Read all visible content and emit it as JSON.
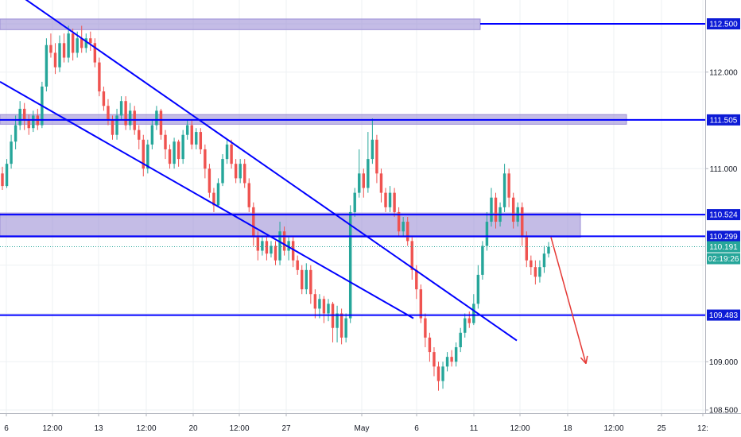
{
  "chart_data": {
    "type": "candlestick",
    "title": "",
    "xlabel": "",
    "ylabel": "",
    "ylim": [
      108.42,
      112.92
    ],
    "grid": true,
    "y_ticks": [
      "112.500",
      "112.000",
      "111.505",
      "111.000",
      "110.524",
      "110.299",
      "110.191",
      "109.483",
      "109.000",
      "108.500"
    ],
    "x_ticks": [
      "6",
      "12:00",
      "13",
      "12:00",
      "20",
      "12:00",
      "27",
      "May",
      "6",
      "11",
      "12:00",
      "18",
      "12:00",
      "25",
      "12:"
    ],
    "colors": {
      "up": "#26a69a",
      "down": "#ef5350",
      "level_line": "#0000ff",
      "zone_fill": "#9c8fd6",
      "arrow": "#e53935",
      "price_badge": "#26a69a",
      "axis_badge": "#0d1bd6"
    },
    "last_price": "110.191",
    "countdown": "02:19:26",
    "levels": [
      {
        "label": "112.500",
        "value": 112.5
      },
      {
        "label": "111.505",
        "value": 111.505
      },
      {
        "label": "110.524",
        "value": 110.524
      },
      {
        "label": "110.299",
        "value": 110.299
      },
      {
        "label": "109.483",
        "value": 109.483
      }
    ],
    "zones": [
      {
        "from": 112.44,
        "to": 112.55
      },
      {
        "from": 111.46,
        "to": 111.56
      },
      {
        "from": 110.29,
        "to": 110.54
      }
    ],
    "candles": [
      [
        110.95,
        110.82,
        111.02,
        110.78
      ],
      [
        110.82,
        111.05,
        111.1,
        110.8
      ],
      [
        111.05,
        111.28,
        111.35,
        111.0
      ],
      [
        111.28,
        111.45,
        111.55,
        111.2
      ],
      [
        111.45,
        111.62,
        111.7,
        111.4
      ],
      [
        111.62,
        111.5,
        111.68,
        111.4
      ],
      [
        111.5,
        111.42,
        111.56,
        111.35
      ],
      [
        111.42,
        111.55,
        111.6,
        111.38
      ],
      [
        111.55,
        111.45,
        111.62,
        111.4
      ],
      [
        111.45,
        111.85,
        111.9,
        111.42
      ],
      [
        111.85,
        112.28,
        112.35,
        111.8
      ],
      [
        112.28,
        112.2,
        112.4,
        112.15
      ],
      [
        112.2,
        112.05,
        112.3,
        111.98
      ],
      [
        112.05,
        112.3,
        112.38,
        112.0
      ],
      [
        112.3,
        112.15,
        112.4,
        112.1
      ],
      [
        112.15,
        112.4,
        112.48,
        112.1
      ],
      [
        112.4,
        112.2,
        112.45,
        112.12
      ],
      [
        112.2,
        112.35,
        112.42,
        112.15
      ],
      [
        112.35,
        112.25,
        112.48,
        112.2
      ],
      [
        112.25,
        112.35,
        112.4,
        112.2
      ],
      [
        112.35,
        112.3,
        112.42,
        112.22
      ],
      [
        112.3,
        112.1,
        112.35,
        112.05
      ],
      [
        112.1,
        111.8,
        112.15,
        111.75
      ],
      [
        111.8,
        111.65,
        111.85,
        111.6
      ],
      [
        111.65,
        111.5,
        111.72,
        111.45
      ],
      [
        111.5,
        111.35,
        111.55,
        111.3
      ],
      [
        111.35,
        111.55,
        111.62,
        111.3
      ],
      [
        111.55,
        111.7,
        111.75,
        111.5
      ],
      [
        111.7,
        111.45,
        111.75,
        111.4
      ],
      [
        111.45,
        111.6,
        111.68,
        111.4
      ],
      [
        111.6,
        111.4,
        111.65,
        111.35
      ],
      [
        111.4,
        111.3,
        111.45,
        111.2
      ],
      [
        111.3,
        111.0,
        111.35,
        110.92
      ],
      [
        111.0,
        111.25,
        111.3,
        110.95
      ],
      [
        111.25,
        111.45,
        111.5,
        111.2
      ],
      [
        111.45,
        111.6,
        111.65,
        111.4
      ],
      [
        111.6,
        111.35,
        111.62,
        111.3
      ],
      [
        111.35,
        111.2,
        111.4,
        111.1
      ],
      [
        111.2,
        111.05,
        111.25,
        111.0
      ],
      [
        111.05,
        111.28,
        111.32,
        111.0
      ],
      [
        111.28,
        111.1,
        111.3,
        111.02
      ],
      [
        111.1,
        111.35,
        111.4,
        111.05
      ],
      [
        111.35,
        111.45,
        111.5,
        111.3
      ],
      [
        111.45,
        111.25,
        111.5,
        111.2
      ],
      [
        111.25,
        111.38,
        111.42,
        111.2
      ],
      [
        111.38,
        111.2,
        111.42,
        111.15
      ],
      [
        111.2,
        111.0,
        111.25,
        110.9
      ],
      [
        111.0,
        110.75,
        111.05,
        110.7
      ],
      [
        110.75,
        110.62,
        110.8,
        110.55
      ],
      [
        110.62,
        110.85,
        110.9,
        110.6
      ],
      [
        110.85,
        111.1,
        111.15,
        110.82
      ],
      [
        111.1,
        111.25,
        111.3,
        111.05
      ],
      [
        111.25,
        111.05,
        111.3,
        111.0
      ],
      [
        111.05,
        110.9,
        111.1,
        110.85
      ],
      [
        110.9,
        111.05,
        111.1,
        110.85
      ],
      [
        111.05,
        110.85,
        111.1,
        110.8
      ],
      [
        110.85,
        110.6,
        110.9,
        110.55
      ],
      [
        110.6,
        110.3,
        110.65,
        110.2
      ],
      [
        110.3,
        110.15,
        110.35,
        110.05
      ],
      [
        110.15,
        110.25,
        110.3,
        110.1
      ],
      [
        110.25,
        110.12,
        110.3,
        110.05
      ],
      [
        110.12,
        110.2,
        110.25,
        110.08
      ],
      [
        110.2,
        110.05,
        110.25,
        110.0
      ],
      [
        110.05,
        110.35,
        110.45,
        110.0
      ],
      [
        110.35,
        110.15,
        110.4,
        110.1
      ],
      [
        110.15,
        110.25,
        110.3,
        110.05
      ],
      [
        110.25,
        110.05,
        110.3,
        109.98
      ],
      [
        110.05,
        109.95,
        110.1,
        109.9
      ],
      [
        109.95,
        109.75,
        110.0,
        109.7
      ],
      [
        109.75,
        109.95,
        110.02,
        109.7
      ],
      [
        109.95,
        109.7,
        110.0,
        109.6
      ],
      [
        109.7,
        109.55,
        109.75,
        109.45
      ],
      [
        109.55,
        109.65,
        109.7,
        109.45
      ],
      [
        109.65,
        109.5,
        109.68,
        109.4
      ],
      [
        109.5,
        109.6,
        109.65,
        109.42
      ],
      [
        109.6,
        109.35,
        109.62,
        109.2
      ],
      [
        109.35,
        109.5,
        109.58,
        109.2
      ],
      [
        109.5,
        109.25,
        109.55,
        109.18
      ],
      [
        109.25,
        109.45,
        109.5,
        109.2
      ],
      [
        109.45,
        110.55,
        110.62,
        109.4
      ],
      [
        110.55,
        110.75,
        110.8,
        110.5
      ],
      [
        110.75,
        110.95,
        111.2,
        110.7
      ],
      [
        110.95,
        110.8,
        111.0,
        110.7
      ],
      [
        110.8,
        111.1,
        111.38,
        110.75
      ],
      [
        111.1,
        111.3,
        111.52,
        111.05
      ],
      [
        111.3,
        110.95,
        111.35,
        110.85
      ],
      [
        110.95,
        110.75,
        111.0,
        110.65
      ],
      [
        110.75,
        110.6,
        110.8,
        110.55
      ],
      [
        110.6,
        110.75,
        110.82,
        110.55
      ],
      [
        110.75,
        110.55,
        110.8,
        110.5
      ],
      [
        110.55,
        110.35,
        110.6,
        110.3
      ],
      [
        110.35,
        110.45,
        110.5,
        110.3
      ],
      [
        110.45,
        110.25,
        110.5,
        110.2
      ],
      [
        110.25,
        109.95,
        110.3,
        109.85
      ],
      [
        109.95,
        109.75,
        110.0,
        109.65
      ],
      [
        109.75,
        109.45,
        109.8,
        109.4
      ],
      [
        109.45,
        109.25,
        109.5,
        109.15
      ],
      [
        109.25,
        109.1,
        109.3,
        109.0
      ],
      [
        109.1,
        108.95,
        109.15,
        108.85
      ],
      [
        108.95,
        108.8,
        109.0,
        108.7
      ],
      [
        108.8,
        108.95,
        109.0,
        108.72
      ],
      [
        108.95,
        109.05,
        109.1,
        108.9
      ],
      [
        109.05,
        109.0,
        109.12,
        108.95
      ],
      [
        109.0,
        109.15,
        109.2,
        108.95
      ],
      [
        109.15,
        109.3,
        109.35,
        109.1
      ],
      [
        109.3,
        109.45,
        109.5,
        109.25
      ],
      [
        109.45,
        109.4,
        109.52,
        109.35
      ],
      [
        109.4,
        109.6,
        109.7,
        109.38
      ],
      [
        109.6,
        109.9,
        110.0,
        109.55
      ],
      [
        109.9,
        110.2,
        110.25,
        109.85
      ],
      [
        110.2,
        110.45,
        110.55,
        110.15
      ],
      [
        110.45,
        110.7,
        110.8,
        110.4
      ],
      [
        110.7,
        110.45,
        110.75,
        110.38
      ],
      [
        110.45,
        110.6,
        110.65,
        110.4
      ],
      [
        110.6,
        110.95,
        111.05,
        110.55
      ],
      [
        110.95,
        110.7,
        111.0,
        110.6
      ],
      [
        110.7,
        110.45,
        110.75,
        110.38
      ],
      [
        110.45,
        110.6,
        110.65,
        110.4
      ],
      [
        110.6,
        110.3,
        110.65,
        110.2
      ],
      [
        110.3,
        110.05,
        110.35,
        109.98
      ],
      [
        110.05,
        109.98,
        110.1,
        109.9
      ],
      [
        109.98,
        109.88,
        110.05,
        109.8
      ],
      [
        109.88,
        109.98,
        110.05,
        109.82
      ],
      [
        109.98,
        110.12,
        110.2,
        109.92
      ],
      [
        110.12,
        110.19,
        110.24,
        110.08
      ]
    ],
    "trendlines": [
      {
        "start": [
          10,
          112.88
        ],
        "end": [
          650,
          109.22
        ]
      },
      {
        "start": [
          0,
          111.9
        ],
        "end": [
          520,
          109.45
        ]
      }
    ],
    "projection": {
      "start": [
        693,
        110.29
      ],
      "end": [
        737,
        108.98
      ]
    }
  }
}
